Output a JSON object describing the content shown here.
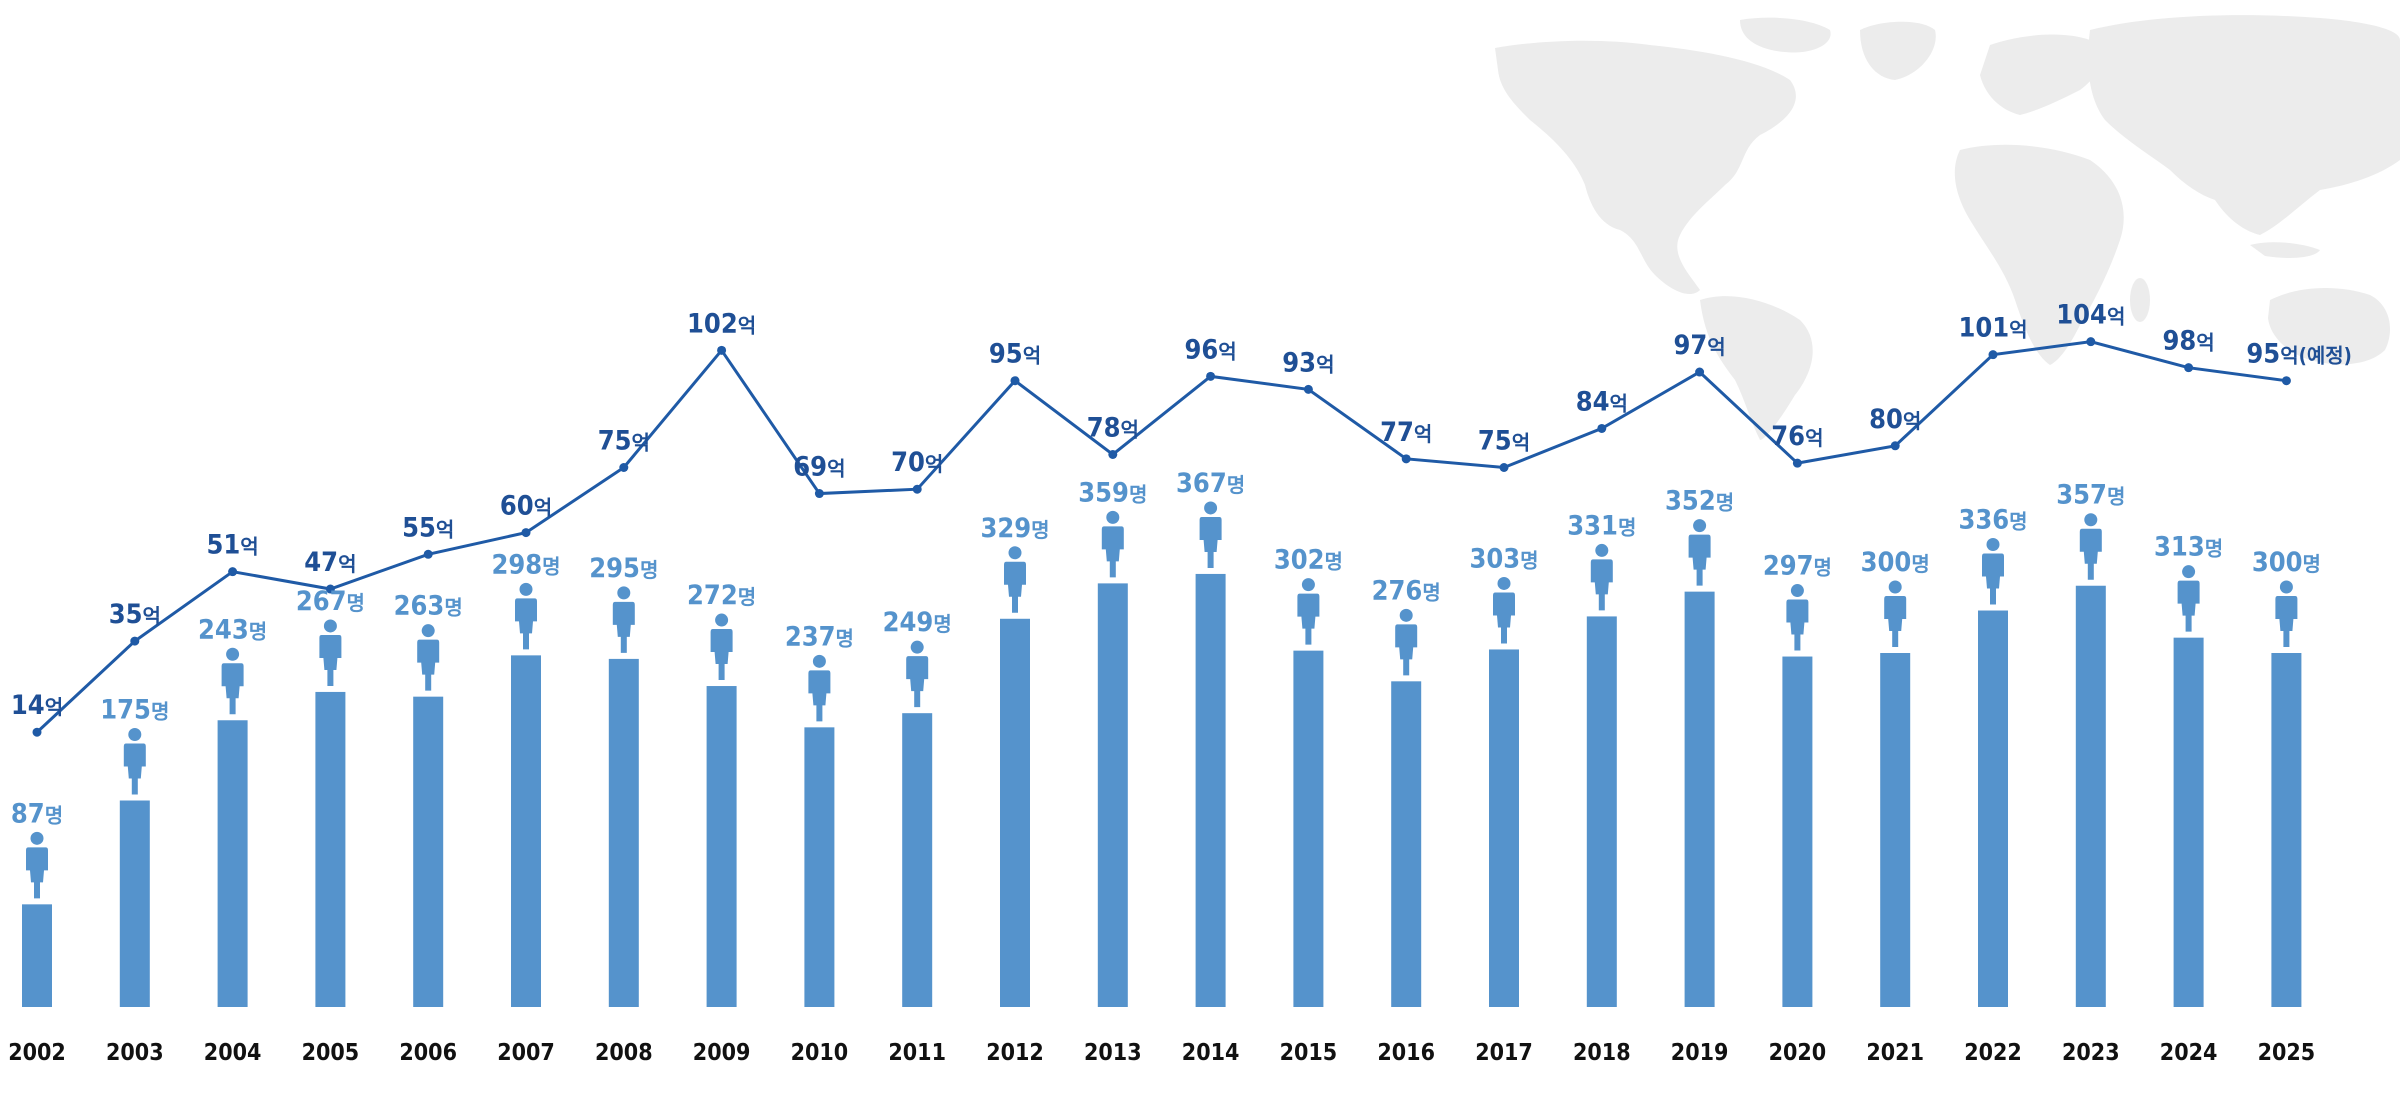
{
  "chart_data": {
    "type": "bar",
    "categories": [
      "2002",
      "2003",
      "2004",
      "2005",
      "2006",
      "2007",
      "2008",
      "2009",
      "2010",
      "2011",
      "2012",
      "2013",
      "2014",
      "2015",
      "2016",
      "2017",
      "2018",
      "2019",
      "2020",
      "2021",
      "2022",
      "2023",
      "2024",
      "2025"
    ],
    "series": [
      {
        "type": "bar",
        "unit": "명",
        "values": [
          87,
          175,
          243,
          267,
          263,
          298,
          295,
          272,
          237,
          249,
          329,
          359,
          367,
          302,
          276,
          303,
          331,
          352,
          297,
          300,
          336,
          357,
          313,
          300
        ],
        "labels": [
          "87",
          "175",
          "243",
          "267",
          "263",
          "298",
          "295",
          "272",
          "237",
          "249",
          "329",
          "359",
          "367",
          "302",
          "276",
          "303",
          "331",
          "352",
          "297",
          "300",
          "336",
          "357",
          "313",
          "300"
        ]
      },
      {
        "type": "line",
        "unit": "억",
        "values": [
          14,
          35,
          51,
          47,
          55,
          60,
          75,
          102,
          69,
          70,
          95,
          78,
          96,
          93,
          77,
          75,
          84,
          97,
          76,
          80,
          101,
          104,
          98,
          95
        ],
        "labels": [
          "14",
          "35",
          "51",
          "47",
          "55",
          "60",
          "75",
          "102",
          "69",
          "70",
          "95",
          "78",
          "96",
          "93",
          "77",
          "75",
          "84",
          "97",
          "76",
          "80",
          "101",
          "104",
          "98",
          "95"
        ],
        "notes": {
          "23": "(예정)"
        }
      }
    ]
  },
  "colors": {
    "bar": "#5593cc",
    "line": "#1f5aa6",
    "amount_label": "#1f4f95",
    "map": "#ececec"
  },
  "icons": {
    "person": "person-icon",
    "background": "world-map"
  }
}
